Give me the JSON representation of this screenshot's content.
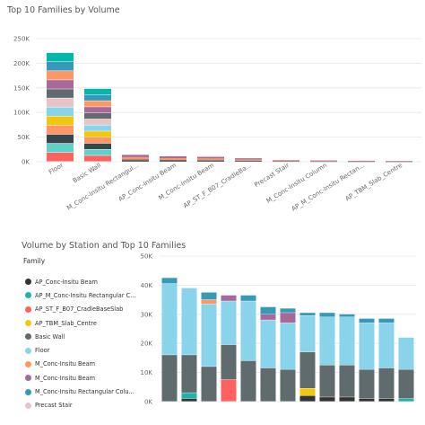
{
  "chart_data": [
    {
      "type": "bar",
      "stacked": true,
      "title": "Top 10 Families by Volume",
      "categories": [
        "Floor",
        "Basic Wall",
        "M_Conc-Insitu Rectangul...",
        "AP_Conc-Insitu Beam",
        "M_Conc-Insitu Beam",
        "AP_ST_F_B07_CradleBa...",
        "Precast Stair",
        "M_Conc-Insitu Column",
        "AP_M_Conc-Insitu Rectan...",
        "AP_TBM_Slab_Centre"
      ],
      "totals": [
        221000,
        148000,
        14000,
        11000,
        10000,
        7000,
        3000,
        2500,
        2000,
        1500
      ],
      "segment_colors": [
        "#fd625e",
        "#5fd1c9",
        "#374649",
        "#fe9666",
        "#f2c80f",
        "#8ad4eb",
        "#e8c3c8",
        "#5f6b6d",
        "#a66999",
        "#fe9666",
        "#3599b8",
        "#01b8aa"
      ],
      "ylim": [
        0,
        250000
      ],
      "yticks": [
        0,
        50000,
        100000,
        150000,
        200000,
        250000
      ],
      "ytick_labels": [
        "0K",
        "50K",
        "100K",
        "150K",
        "200K",
        "250K"
      ],
      "grid": true
    },
    {
      "type": "bar",
      "stacked": true,
      "title": "Volume by Station and Top 10 Families",
      "legend": {
        "title": "Family",
        "position": "left",
        "entries": [
          {
            "name": "AP_Conc-Insitu Beam",
            "color": "#333333"
          },
          {
            "name": "AP_M_Conc-Insitu Rectangular C...",
            "color": "#20b2aa"
          },
          {
            "name": "AP_ST_F_B07_CradleBaseSlab",
            "color": "#fd625e"
          },
          {
            "name": "AP_TBM_Slab_Centre",
            "color": "#f2c80f"
          },
          {
            "name": "Basic Wall",
            "color": "#5f6b6d"
          },
          {
            "name": "Floor",
            "color": "#8ad4eb"
          },
          {
            "name": "M_Conc-Insitu Beam",
            "color": "#fe9666"
          },
          {
            "name": "M_Conc-Insitu Beam",
            "color": "#a66999"
          },
          {
            "name": "M_Conc-Insitu Rectangular Colu...",
            "color": "#3599b8"
          },
          {
            "name": "Precast Stair",
            "color": "#e8c3c8"
          }
        ]
      },
      "ylim": [
        0,
        50000
      ],
      "yticks": [
        0,
        10000,
        20000,
        30000,
        40000,
        50000
      ],
      "ytick_labels": [
        "0K",
        "10K",
        "20K",
        "30K",
        "40K",
        "50K"
      ],
      "grid": true,
      "stations": [
        {
          "segments": [
            {
              "f": 4,
              "v": 16000
            },
            {
              "f": 5,
              "v": 24500
            },
            {
              "f": 8,
              "v": 2000
            }
          ]
        },
        {
          "segments": [
            {
              "f": 0,
              "v": 1000
            },
            {
              "f": 1,
              "v": 2000
            },
            {
              "f": 4,
              "v": 13000
            },
            {
              "f": 5,
              "v": 23000
            }
          ]
        },
        {
          "segments": [
            {
              "f": 4,
              "v": 12000
            },
            {
              "f": 5,
              "v": 21500
            },
            {
              "f": 6,
              "v": 1500
            },
            {
              "f": 8,
              "v": 2500
            }
          ]
        },
        {
          "segments": [
            {
              "f": 2,
              "v": 7500
            },
            {
              "f": 4,
              "v": 12000
            },
            {
              "f": 5,
              "v": 15000
            },
            {
              "f": 7,
              "v": 2000
            }
          ]
        },
        {
          "segments": [
            {
              "f": 4,
              "v": 14000
            },
            {
              "f": 5,
              "v": 20500
            },
            {
              "f": 8,
              "v": 2000
            }
          ]
        },
        {
          "segments": [
            {
              "f": 4,
              "v": 11500
            },
            {
              "f": 5,
              "v": 16500
            },
            {
              "f": 7,
              "v": 2000
            },
            {
              "f": 8,
              "v": 2500
            }
          ]
        },
        {
          "segments": [
            {
              "f": 4,
              "v": 11000
            },
            {
              "f": 5,
              "v": 16000
            },
            {
              "f": 7,
              "v": 3500
            },
            {
              "f": 8,
              "v": 1500
            }
          ]
        },
        {
          "segments": [
            {
              "f": 0,
              "v": 2000
            },
            {
              "f": 3,
              "v": 2500
            },
            {
              "f": 4,
              "v": 12500
            },
            {
              "f": 5,
              "v": 12500
            },
            {
              "f": 8,
              "v": 1000
            }
          ]
        },
        {
          "segments": [
            {
              "f": 0,
              "v": 1500
            },
            {
              "f": 4,
              "v": 11000
            },
            {
              "f": 5,
              "v": 16500
            },
            {
              "f": 8,
              "v": 1500
            }
          ]
        },
        {
          "segments": [
            {
              "f": 0,
              "v": 1500
            },
            {
              "f": 4,
              "v": 11000
            },
            {
              "f": 5,
              "v": 16500
            },
            {
              "f": 8,
              "v": 1000
            }
          ]
        },
        {
          "segments": [
            {
              "f": 0,
              "v": 1000
            },
            {
              "f": 4,
              "v": 10000
            },
            {
              "f": 5,
              "v": 16000
            },
            {
              "f": 8,
              "v": 1500
            }
          ]
        },
        {
          "segments": [
            {
              "f": 0,
              "v": 1000
            },
            {
              "f": 4,
              "v": 10500
            },
            {
              "f": 5,
              "v": 15500
            },
            {
              "f": 8,
              "v": 1500
            }
          ]
        },
        {
          "segments": [
            {
              "f": 1,
              "v": 1000
            },
            {
              "f": 4,
              "v": 10000
            },
            {
              "f": 5,
              "v": 11000
            }
          ]
        }
      ]
    }
  ]
}
